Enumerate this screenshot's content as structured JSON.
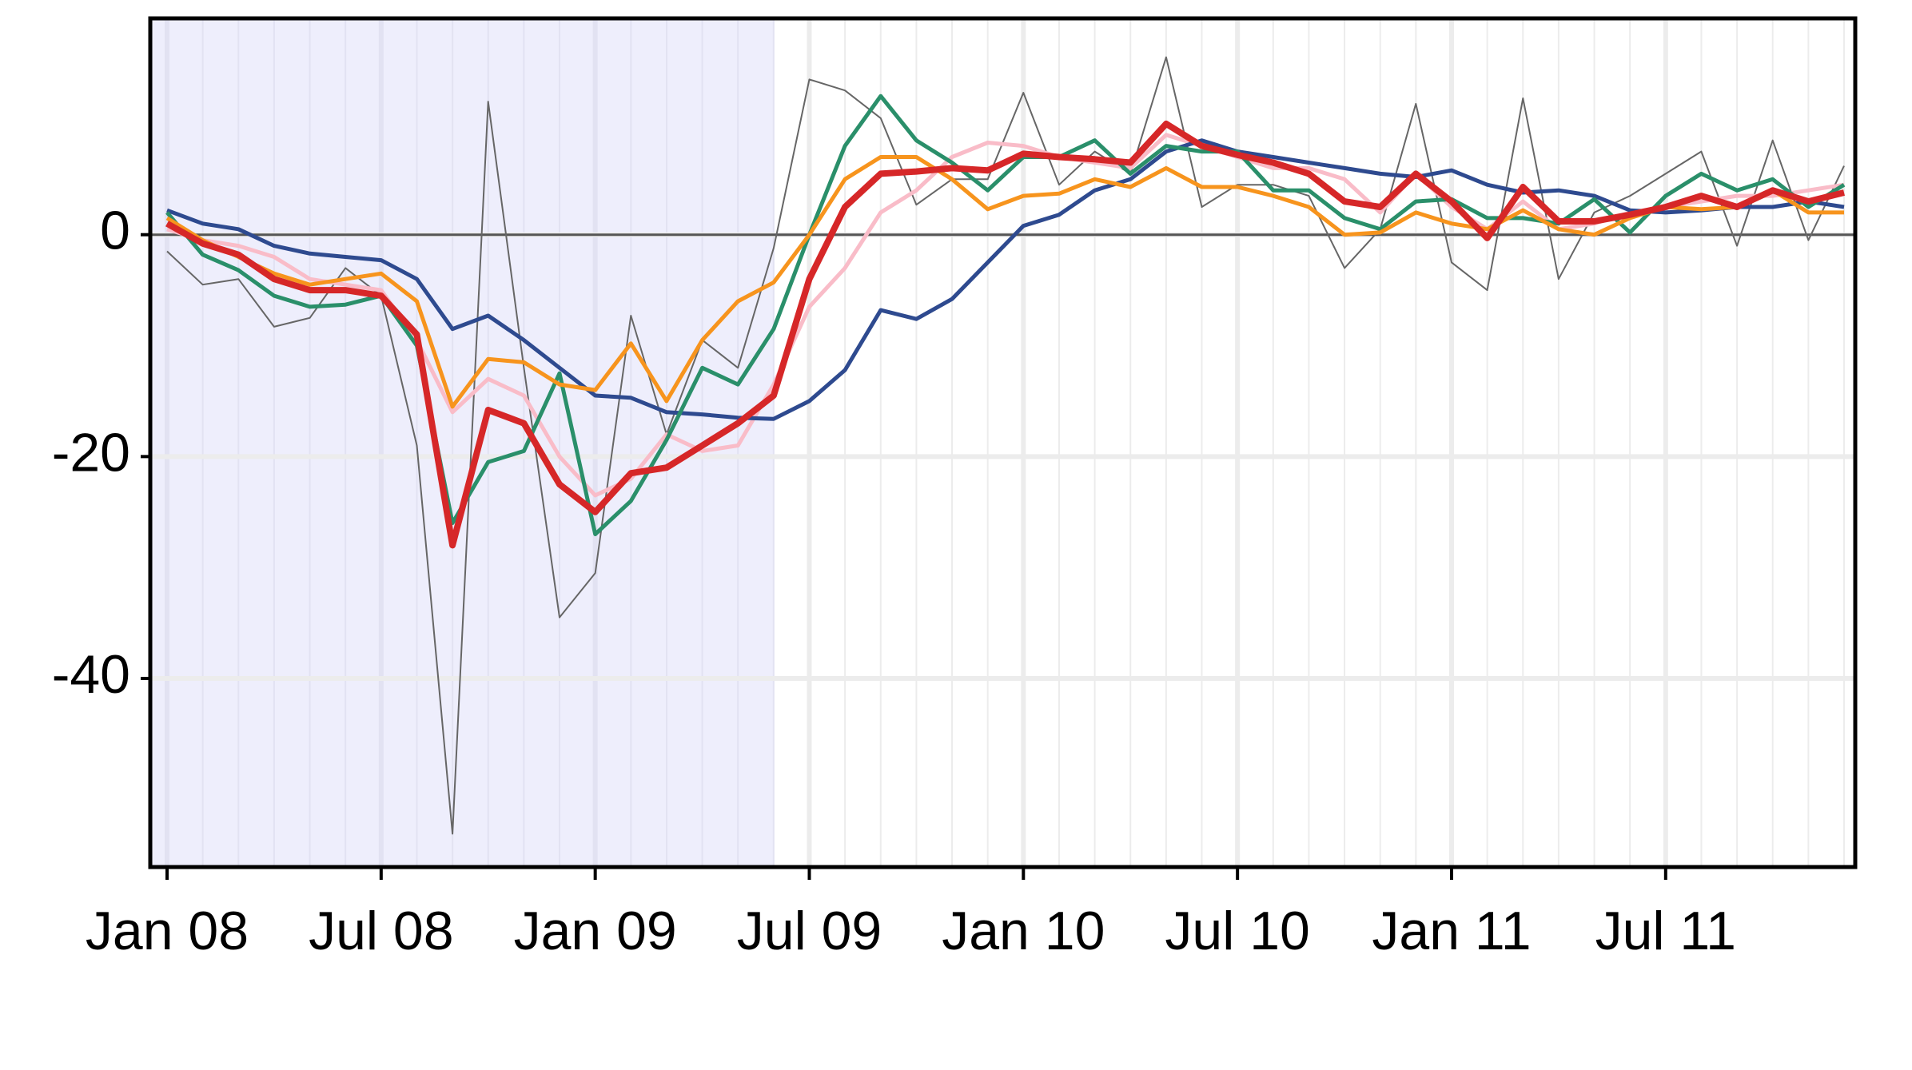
{
  "chart_data": {
    "type": "line",
    "categories": [
      "Jan 08",
      null,
      null,
      null,
      null,
      null,
      "Jul 08",
      null,
      null,
      null,
      null,
      null,
      "Jan 09",
      null,
      null,
      null,
      null,
      null,
      "Jul 09",
      null,
      null,
      null,
      null,
      null,
      "Jan 10",
      null,
      null,
      null,
      null,
      null,
      "Jul 10",
      null,
      null,
      null,
      null,
      null,
      "Jan 11",
      null,
      null,
      null,
      null,
      null,
      "Jul 11",
      null,
      null,
      null,
      null,
      null
    ],
    "series": [
      {
        "color": "#666666",
        "values": [
          -1.5,
          -4.5,
          -4,
          -8.3,
          -7.5,
          -3,
          -5.5,
          -19,
          -54,
          12,
          -12,
          -34.5,
          -30.5,
          -7.3,
          -18,
          -9.5,
          -12,
          -1.2,
          14,
          13,
          10.5,
          2.7,
          5,
          5,
          12.8,
          4.5,
          7.5,
          5.5,
          16,
          2.5,
          4.5,
          4.5,
          3.5,
          -3,
          0.5,
          11.8,
          -2.5,
          -5,
          12.3,
          -4,
          2,
          3.5,
          5.5,
          7.5,
          -1,
          8.5,
          -0.5,
          6.2
        ]
      },
      {
        "color": "#f9bcc8",
        "values": [
          0.5,
          -0.5,
          -1,
          -2,
          -4,
          -4.5,
          -5,
          -9.5,
          -16,
          -13,
          -14.5,
          -20,
          -23.5,
          -22,
          -18,
          -19.5,
          -19,
          -13.5,
          -6.5,
          -3,
          2,
          4,
          7,
          8.3,
          8,
          7,
          6.5,
          6,
          9,
          8,
          7,
          6,
          6,
          5,
          2,
          5.5,
          2.5,
          0.5,
          3,
          0.5,
          1,
          2,
          2.5,
          3,
          3.5,
          3.5,
          4,
          4.5
        ]
      },
      {
        "color": "#2e4a8f",
        "values": [
          2.2,
          1,
          0.5,
          -1,
          -1.7,
          -2,
          -2.3,
          -4,
          -8.5,
          -7.3,
          -9.5,
          -12,
          -14.5,
          -14.7,
          -16,
          -16.2,
          -16.5,
          -16.6,
          -15,
          -12.2,
          -6.8,
          -7.6,
          -5.8,
          -2.5,
          0.8,
          1.8,
          4,
          5,
          7.5,
          8.5,
          7.5,
          7,
          6.5,
          6,
          5.5,
          5.2,
          5.8,
          4.5,
          3.8,
          4,
          3.5,
          2.2,
          2,
          2.2,
          2.5,
          2.5,
          3,
          2.5
        ]
      },
      {
        "color": "#2a8f6a",
        "values": [
          2,
          -1.8,
          -3.2,
          -5.5,
          -6.5,
          -6.3,
          -5.5,
          -10,
          -26,
          -20.5,
          -19.5,
          -12.5,
          -27,
          -24,
          -18.5,
          -12,
          -13.5,
          -8.5,
          0,
          8,
          12.5,
          8.5,
          6.5,
          4,
          7,
          7,
          8.5,
          5.5,
          8,
          7.5,
          7.5,
          4,
          4,
          1.5,
          0.5,
          3,
          3.2,
          1.5,
          1.5,
          1,
          3.2,
          0.2,
          3.5,
          5.5,
          4,
          5,
          2.5,
          4.5
        ]
      },
      {
        "color": "#f7941d",
        "values": [
          1.5,
          -0.5,
          -2,
          -3.5,
          -4.5,
          -4,
          -3.5,
          -6,
          -15.5,
          -11.2,
          -11.5,
          -13.5,
          -14,
          -9.8,
          -15,
          -9.5,
          -6,
          -4.3,
          0,
          5,
          7,
          7,
          5,
          2.3,
          3.5,
          3.7,
          5,
          4.3,
          6,
          4.3,
          4.3,
          3.5,
          2.5,
          0,
          0.2,
          2,
          1,
          0.5,
          2.2,
          0.5,
          0,
          1.5,
          2.5,
          2.3,
          2.5,
          4,
          2,
          2
        ]
      },
      {
        "color": "#d62728",
        "values": [
          1,
          -0.8,
          -1.8,
          -4,
          -5,
          -5,
          -5.5,
          -9,
          -28,
          -15.8,
          -17,
          -22.5,
          -25,
          -21.5,
          -21,
          -19,
          -17,
          -14.5,
          -4,
          2.5,
          5.5,
          5.7,
          6,
          5.8,
          7.3,
          7,
          6.8,
          6.5,
          10,
          8,
          7.2,
          6.5,
          5.5,
          3,
          2.5,
          5.5,
          3,
          -0.3,
          4.3,
          1.2,
          1.2,
          1.8,
          2.5,
          3.5,
          2.5,
          4,
          3,
          3.8
        ]
      }
    ],
    "ylim": [
      -57,
      19.5
    ],
    "yticks": [
      -40,
      -20,
      0
    ],
    "grid": true,
    "hline": 0,
    "shade": {
      "from": 0,
      "to": 17,
      "color": "#eeeefc"
    }
  }
}
